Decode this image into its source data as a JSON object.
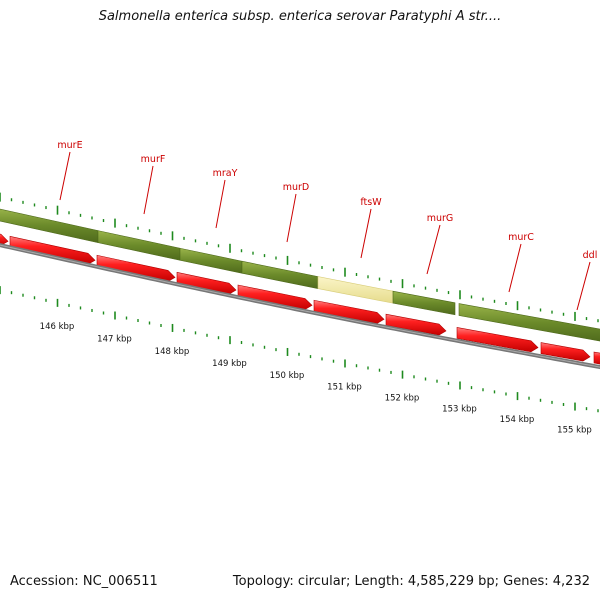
{
  "title": "Salmonella enterica subsp. enterica serovar Paratyphi A str....",
  "footer": {
    "accession_label": "Accession:",
    "accession": "NC_006511",
    "topology": "Topology: circular; Length: 4,585,229 bp; Genes: 4,232"
  },
  "colors": {
    "gene_arrow": "#ee1111",
    "gene_arrow_top": "#ff7777",
    "feature_bar": "#6b8a2a",
    "feature_highlight": "#eee6a0",
    "backbone": "#808080",
    "tick": "#1e8a1e",
    "label": "#cc0000"
  },
  "genes": [
    {
      "name": "murE",
      "highlight": false
    },
    {
      "name": "murF",
      "highlight": false
    },
    {
      "name": "mraY",
      "highlight": false
    },
    {
      "name": "murD",
      "highlight": false
    },
    {
      "name": "ftsW",
      "highlight": true
    },
    {
      "name": "murG",
      "highlight": false
    },
    {
      "name": "murC",
      "highlight": false
    },
    {
      "name": "ddl",
      "highlight": false
    }
  ],
  "scale_labels": [
    "146 kbp",
    "147 kbp",
    "148 kbp",
    "149 kbp",
    "150 kbp",
    "151 kbp",
    "152 kbp",
    "153 kbp",
    "154 kbp",
    "155 kbp"
  ]
}
